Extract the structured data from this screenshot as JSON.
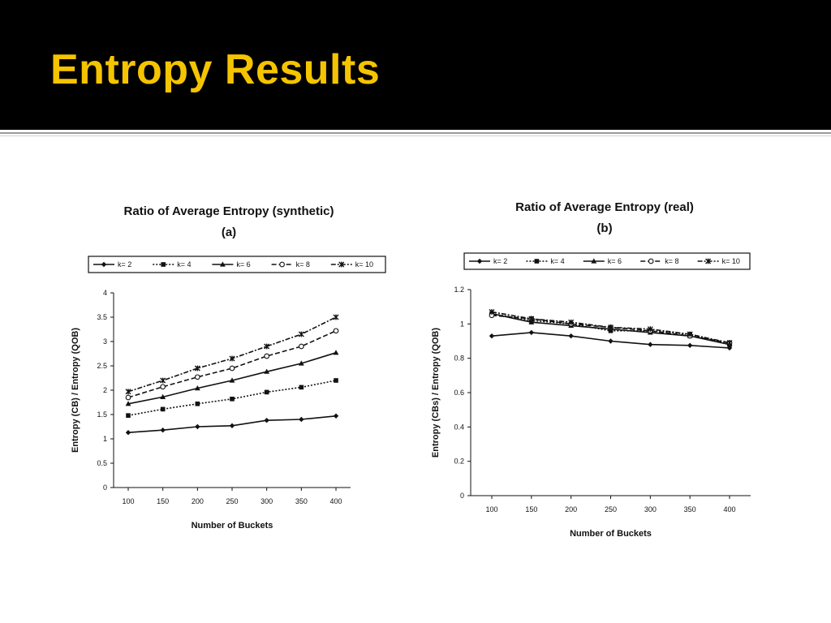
{
  "slide": {
    "title": "Entropy Results"
  },
  "chart_data": [
    {
      "type": "line",
      "title": "Ratio of Average Entropy (synthetic)",
      "subtitle": "(a)",
      "xlabel": "Number of Buckets",
      "ylabel": "Entropy (CB) / Entropy (QOB)",
      "x": [
        100,
        150,
        200,
        250,
        300,
        350,
        400
      ],
      "ylim": [
        0,
        4
      ],
      "yticks": [
        0,
        0.5,
        1,
        1.5,
        2,
        2.5,
        3,
        3.5,
        4
      ],
      "ytick_labels": [
        "0",
        "0.5",
        "1",
        "1.5",
        "2",
        "2.5",
        "3",
        "3.5",
        "4"
      ],
      "legend_position": "top",
      "grid": false,
      "series": [
        {
          "name": "k= 2",
          "style": "solid",
          "marker": "diamond",
          "values": [
            1.13,
            1.18,
            1.25,
            1.27,
            1.38,
            1.4,
            1.47
          ]
        },
        {
          "name": "k= 4",
          "style": "dotted",
          "marker": "square",
          "values": [
            1.48,
            1.61,
            1.72,
            1.82,
            1.96,
            2.06,
            2.2
          ]
        },
        {
          "name": "k= 6",
          "style": "solid",
          "marker": "triangle",
          "values": [
            1.72,
            1.86,
            2.04,
            2.2,
            2.38,
            2.55,
            2.77
          ]
        },
        {
          "name": "k= 8",
          "style": "dashed",
          "marker": "circle",
          "values": [
            1.85,
            2.07,
            2.27,
            2.45,
            2.7,
            2.9,
            3.22
          ]
        },
        {
          "name": "k= 10",
          "style": "dashdot",
          "marker": "star",
          "values": [
            1.97,
            2.2,
            2.45,
            2.65,
            2.9,
            3.15,
            3.5
          ]
        }
      ]
    },
    {
      "type": "line",
      "title": "Ratio of Average Entropy (real)",
      "subtitle": "(b)",
      "xlabel": "Number of Buckets",
      "ylabel": "Entropy (CBs) / Entropy (QOB)",
      "x": [
        100,
        150,
        200,
        250,
        300,
        350,
        400
      ],
      "ylim": [
        0,
        1.2
      ],
      "yticks": [
        0,
        0.2,
        0.4,
        0.6,
        0.8,
        1,
        1.2
      ],
      "ytick_labels": [
        "0",
        "0.2",
        "0.4",
        "0.6",
        "0.8",
        "1",
        "1.2"
      ],
      "legend_position": "top",
      "grid": false,
      "series": [
        {
          "name": "k= 2",
          "style": "solid",
          "marker": "diamond",
          "values": [
            0.93,
            0.95,
            0.93,
            0.9,
            0.88,
            0.875,
            0.86
          ]
        },
        {
          "name": "k= 4",
          "style": "dotted",
          "marker": "square",
          "values": [
            1.06,
            1.02,
            1.0,
            0.96,
            0.96,
            0.94,
            0.88
          ]
        },
        {
          "name": "k= 6",
          "style": "solid",
          "marker": "triangle",
          "values": [
            1.06,
            1.01,
            0.99,
            0.97,
            0.95,
            0.93,
            0.88
          ]
        },
        {
          "name": "k= 8",
          "style": "dashed",
          "marker": "circle",
          "values": [
            1.05,
            1.03,
            1.0,
            0.98,
            0.96,
            0.93,
            0.89
          ]
        },
        {
          "name": "k= 10",
          "style": "dashdot",
          "marker": "star",
          "values": [
            1.07,
            1.03,
            1.01,
            0.98,
            0.97,
            0.94,
            0.89
          ]
        }
      ]
    }
  ]
}
